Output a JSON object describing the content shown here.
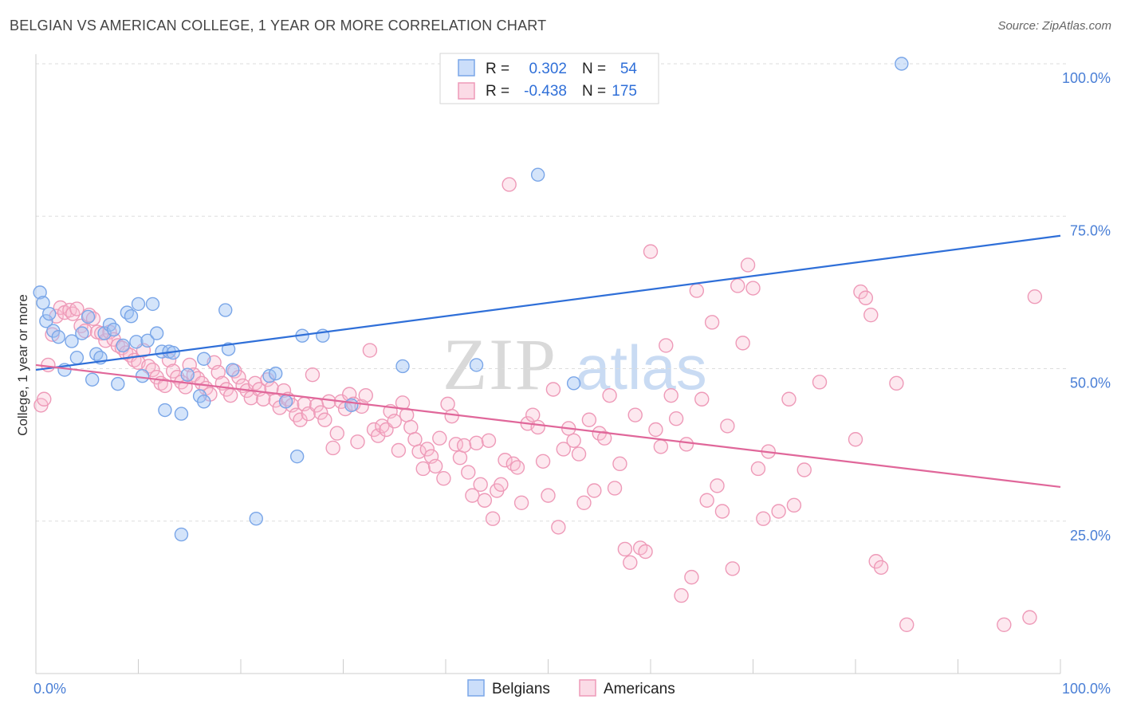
{
  "title": "BELGIAN VS AMERICAN COLLEGE, 1 YEAR OR MORE CORRELATION CHART",
  "source": "Source: ZipAtlas.com",
  "watermark": {
    "zip": "ZIP",
    "atlas": "atlas"
  },
  "colors": {
    "belgians": "#7aa6e8",
    "belgians_fill": "rgba(160,195,245,0.45)",
    "belgians_line": "#2f6fd8",
    "americans": "#ee9ab8",
    "americans_fill": "rgba(248,190,210,0.35)",
    "americans_line": "#e0679a",
    "tick": "#4a7fd6"
  },
  "legend": {
    "rows": [
      {
        "r_label": "R =",
        "r_value": "0.302",
        "n_label": "N =",
        "n_value": "54"
      },
      {
        "r_label": "R =",
        "r_value": "-0.438",
        "n_label": "N =",
        "n_value": "175"
      }
    ]
  },
  "chart_data": {
    "type": "scatter",
    "xlabel": "",
    "ylabel": "College, 1 year or more",
    "xlim": [
      0,
      100
    ],
    "ylim": [
      0,
      100
    ],
    "x_tick_labels": [
      "0.0%",
      "100.0%"
    ],
    "y_ticks": [
      {
        "value": 100,
        "label": "100.0%"
      },
      {
        "value": 75,
        "label": "75.0%"
      },
      {
        "value": 50,
        "label": "50.0%"
      },
      {
        "value": 25,
        "label": "25.0%"
      }
    ],
    "grid": true,
    "legend_position": "top-center",
    "series": [
      {
        "name": "Belgians",
        "trend": [
          [
            0,
            49.8
          ],
          [
            100,
            71.8
          ]
        ],
        "points": [
          [
            0.4,
            62.5
          ],
          [
            0.7,
            60.8
          ],
          [
            1.0,
            57.8
          ],
          [
            1.3,
            59.0
          ],
          [
            1.7,
            56.2
          ],
          [
            2.2,
            55.2
          ],
          [
            2.8,
            49.8
          ],
          [
            3.5,
            54.5
          ],
          [
            4.0,
            51.8
          ],
          [
            4.5,
            55.8
          ],
          [
            5.1,
            58.5
          ],
          [
            5.5,
            48.2
          ],
          [
            5.9,
            52.4
          ],
          [
            6.3,
            51.8
          ],
          [
            6.7,
            55.8
          ],
          [
            7.2,
            57.2
          ],
          [
            7.6,
            56.4
          ],
          [
            8.0,
            47.5
          ],
          [
            8.5,
            53.8
          ],
          [
            8.9,
            59.2
          ],
          [
            9.3,
            58.6
          ],
          [
            9.8,
            54.4
          ],
          [
            10.0,
            60.6
          ],
          [
            10.4,
            48.8
          ],
          [
            10.9,
            54.6
          ],
          [
            11.4,
            60.6
          ],
          [
            11.8,
            55.8
          ],
          [
            12.3,
            52.8
          ],
          [
            12.6,
            43.2
          ],
          [
            13.0,
            52.8
          ],
          [
            13.4,
            52.6
          ],
          [
            14.2,
            42.6
          ],
          [
            14.2,
            22.8
          ],
          [
            14.8,
            49.0
          ],
          [
            16.0,
            45.5
          ],
          [
            16.4,
            44.6
          ],
          [
            16.4,
            51.6
          ],
          [
            18.5,
            59.6
          ],
          [
            18.8,
            53.2
          ],
          [
            19.2,
            49.8
          ],
          [
            21.5,
            25.4
          ],
          [
            22.8,
            48.8
          ],
          [
            23.4,
            49.2
          ],
          [
            24.4,
            44.6
          ],
          [
            25.5,
            35.6
          ],
          [
            26.0,
            55.4
          ],
          [
            28.0,
            55.4
          ],
          [
            30.8,
            44.0
          ],
          [
            35.8,
            50.4
          ],
          [
            43.0,
            50.6
          ],
          [
            49.0,
            81.8
          ],
          [
            52.5,
            47.6
          ],
          [
            84.5,
            100.0
          ]
        ]
      },
      {
        "name": "Americans",
        "trend": [
          [
            0,
            50.6
          ],
          [
            100,
            30.6
          ]
        ],
        "points": [
          [
            0.5,
            44.0
          ],
          [
            0.8,
            45.0
          ],
          [
            1.2,
            50.6
          ],
          [
            1.6,
            55.6
          ],
          [
            2.0,
            58.6
          ],
          [
            2.4,
            60.0
          ],
          [
            2.8,
            59.2
          ],
          [
            3.3,
            59.6
          ],
          [
            3.6,
            59.0
          ],
          [
            4.0,
            59.8
          ],
          [
            4.4,
            57.0
          ],
          [
            4.8,
            56.2
          ],
          [
            5.2,
            58.8
          ],
          [
            5.6,
            58.2
          ],
          [
            6.0,
            56.0
          ],
          [
            6.4,
            55.8
          ],
          [
            6.8,
            54.6
          ],
          [
            7.2,
            56.0
          ],
          [
            7.6,
            54.8
          ],
          [
            8.0,
            53.8
          ],
          [
            8.4,
            53.4
          ],
          [
            8.8,
            52.6
          ],
          [
            9.2,
            52.2
          ],
          [
            9.6,
            51.4
          ],
          [
            10.0,
            51.0
          ],
          [
            10.5,
            53.0
          ],
          [
            11.0,
            50.4
          ],
          [
            11.4,
            49.8
          ],
          [
            11.8,
            48.6
          ],
          [
            12.2,
            47.6
          ],
          [
            12.6,
            47.2
          ],
          [
            13.0,
            51.4
          ],
          [
            13.4,
            49.6
          ],
          [
            13.8,
            48.6
          ],
          [
            14.2,
            47.8
          ],
          [
            14.6,
            47.0
          ],
          [
            15.0,
            50.6
          ],
          [
            15.4,
            49.0
          ],
          [
            15.8,
            48.4
          ],
          [
            16.2,
            47.6
          ],
          [
            16.6,
            46.8
          ],
          [
            17.0,
            45.8
          ],
          [
            17.4,
            51.0
          ],
          [
            17.8,
            49.4
          ],
          [
            18.2,
            47.6
          ],
          [
            18.6,
            46.6
          ],
          [
            19.0,
            45.6
          ],
          [
            19.4,
            49.6
          ],
          [
            19.8,
            48.6
          ],
          [
            20.2,
            47.2
          ],
          [
            20.6,
            46.4
          ],
          [
            21.0,
            45.2
          ],
          [
            21.4,
            47.6
          ],
          [
            21.8,
            46.6
          ],
          [
            22.2,
            45.0
          ],
          [
            22.6,
            48.2
          ],
          [
            23.0,
            46.8
          ],
          [
            23.4,
            44.8
          ],
          [
            23.8,
            43.6
          ],
          [
            24.2,
            46.4
          ],
          [
            24.6,
            45.0
          ],
          [
            25.0,
            44.0
          ],
          [
            25.4,
            42.4
          ],
          [
            25.8,
            41.6
          ],
          [
            26.2,
            44.2
          ],
          [
            26.6,
            42.6
          ],
          [
            27.0,
            49.0
          ],
          [
            27.4,
            44.0
          ],
          [
            27.8,
            42.8
          ],
          [
            28.2,
            41.6
          ],
          [
            28.6,
            44.6
          ],
          [
            29.0,
            37.0
          ],
          [
            29.4,
            39.4
          ],
          [
            29.8,
            44.6
          ],
          [
            30.2,
            43.4
          ],
          [
            30.6,
            45.8
          ],
          [
            31.0,
            44.2
          ],
          [
            31.4,
            38.0
          ],
          [
            31.8,
            43.8
          ],
          [
            32.2,
            45.6
          ],
          [
            32.6,
            53.0
          ],
          [
            33.0,
            40.0
          ],
          [
            33.4,
            39.0
          ],
          [
            33.8,
            40.6
          ],
          [
            34.2,
            40.0
          ],
          [
            34.6,
            43.0
          ],
          [
            35.0,
            41.4
          ],
          [
            35.4,
            36.6
          ],
          [
            35.8,
            44.4
          ],
          [
            36.2,
            42.4
          ],
          [
            36.6,
            40.4
          ],
          [
            37.0,
            38.4
          ],
          [
            37.4,
            36.4
          ],
          [
            37.8,
            33.6
          ],
          [
            38.2,
            36.8
          ],
          [
            38.6,
            35.6
          ],
          [
            39.0,
            34.0
          ],
          [
            39.4,
            38.6
          ],
          [
            39.8,
            32.0
          ],
          [
            40.2,
            44.2
          ],
          [
            40.6,
            42.2
          ],
          [
            41.0,
            37.6
          ],
          [
            41.4,
            35.4
          ],
          [
            41.8,
            37.4
          ],
          [
            42.2,
            33.0
          ],
          [
            42.6,
            29.2
          ],
          [
            43.0,
            37.8
          ],
          [
            43.4,
            31.0
          ],
          [
            43.8,
            28.4
          ],
          [
            44.2,
            38.2
          ],
          [
            44.6,
            25.4
          ],
          [
            45.0,
            30.0
          ],
          [
            45.4,
            31.0
          ],
          [
            45.8,
            35.0
          ],
          [
            46.2,
            80.2
          ],
          [
            46.6,
            34.4
          ],
          [
            47.0,
            33.8
          ],
          [
            47.4,
            28.0
          ],
          [
            48.0,
            41.0
          ],
          [
            48.5,
            42.4
          ],
          [
            49.0,
            40.4
          ],
          [
            49.5,
            34.8
          ],
          [
            50.0,
            29.2
          ],
          [
            50.5,
            46.6
          ],
          [
            51.0,
            24.0
          ],
          [
            51.5,
            36.8
          ],
          [
            52.0,
            40.2
          ],
          [
            52.5,
            38.2
          ],
          [
            53.0,
            36.0
          ],
          [
            53.5,
            28.0
          ],
          [
            54.0,
            41.6
          ],
          [
            54.5,
            30.0
          ],
          [
            55.0,
            39.4
          ],
          [
            55.5,
            38.6
          ],
          [
            56.0,
            45.6
          ],
          [
            56.5,
            30.4
          ],
          [
            57.0,
            34.4
          ],
          [
            57.5,
            20.4
          ],
          [
            58.0,
            18.2
          ],
          [
            58.5,
            42.4
          ],
          [
            59.0,
            20.6
          ],
          [
            59.5,
            20.0
          ],
          [
            60.0,
            69.2
          ],
          [
            60.5,
            40.0
          ],
          [
            61.0,
            37.2
          ],
          [
            61.5,
            53.8
          ],
          [
            62.0,
            45.6
          ],
          [
            62.5,
            41.8
          ],
          [
            63.0,
            12.8
          ],
          [
            63.5,
            37.6
          ],
          [
            64.0,
            15.8
          ],
          [
            64.5,
            62.8
          ],
          [
            65.0,
            45.0
          ],
          [
            65.5,
            28.4
          ],
          [
            66.0,
            57.6
          ],
          [
            66.5,
            30.8
          ],
          [
            67.0,
            26.6
          ],
          [
            67.5,
            40.6
          ],
          [
            68.0,
            17.2
          ],
          [
            68.5,
            63.6
          ],
          [
            69.0,
            54.2
          ],
          [
            69.5,
            67.0
          ],
          [
            70.0,
            63.2
          ],
          [
            70.5,
            33.6
          ],
          [
            71.0,
            25.4
          ],
          [
            71.5,
            36.4
          ],
          [
            72.5,
            26.6
          ],
          [
            73.5,
            45.0
          ],
          [
            74.0,
            27.6
          ],
          [
            75.0,
            33.4
          ],
          [
            76.5,
            47.8
          ],
          [
            80.0,
            38.4
          ],
          [
            80.5,
            62.6
          ],
          [
            81.0,
            61.6
          ],
          [
            81.5,
            58.8
          ],
          [
            82.0,
            18.4
          ],
          [
            82.5,
            17.4
          ],
          [
            84.0,
            47.6
          ],
          [
            85.0,
            8.0
          ],
          [
            94.5,
            8.0
          ],
          [
            97.0,
            9.2
          ],
          [
            97.5,
            61.8
          ]
        ]
      }
    ]
  }
}
